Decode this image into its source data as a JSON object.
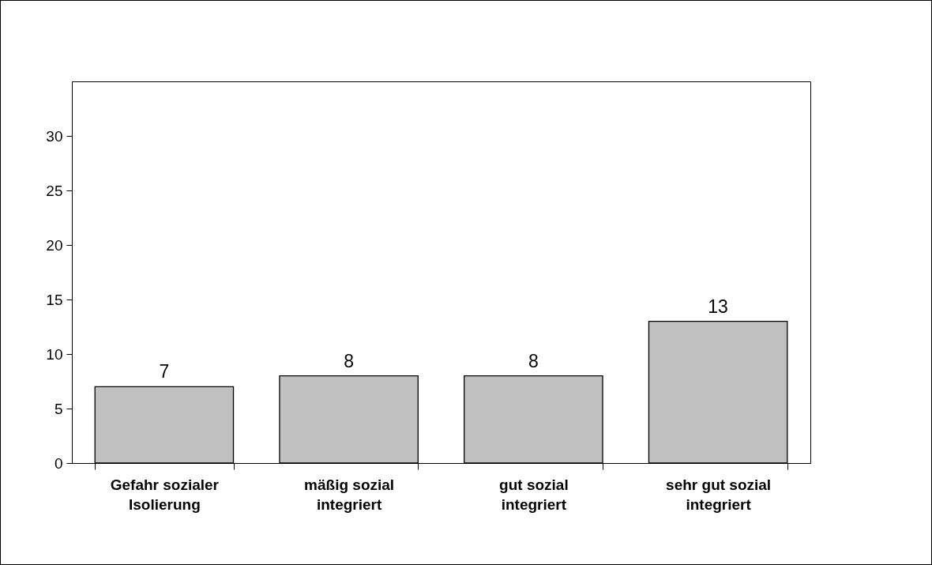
{
  "chart_data": {
    "type": "bar",
    "categories": [
      "Gefahr sozialer Isolierung",
      "mäßig sozial integriert",
      "gut sozial integriert",
      "sehr gut sozial integriert"
    ],
    "values": [
      7,
      8,
      8,
      13
    ],
    "color": "#c0c0c0",
    "ylim": [
      0,
      35
    ],
    "yticks": [
      0,
      5,
      10,
      15,
      20,
      25,
      30
    ],
    "grid": false,
    "data_labels": true
  }
}
